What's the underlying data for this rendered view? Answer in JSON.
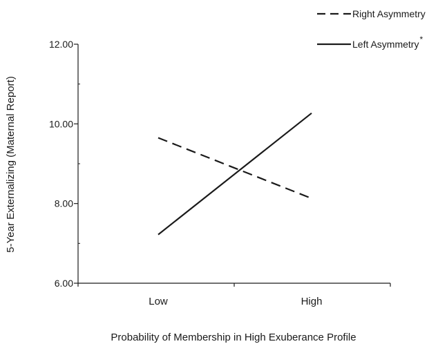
{
  "chart_data": {
    "type": "line",
    "categories": [
      "Low",
      "High"
    ],
    "series": [
      {
        "name": "Right Asymmetry",
        "values": [
          9.65,
          8.13
        ],
        "style": "dashed",
        "marker": ""
      },
      {
        "name": "Left Asymmetry",
        "values": [
          7.22,
          10.27
        ],
        "style": "solid",
        "marker": "*"
      }
    ],
    "xlabel": "Probability of Membership in High Exuberance Profile",
    "ylabel": "5-Year Externalizing (Maternal Report)",
    "ylim": [
      6,
      12
    ],
    "yticks": [
      "6.00",
      "8.00",
      "10.00",
      "12.00"
    ],
    "yminor": [
      7,
      9,
      11
    ],
    "grid": false,
    "legend_position": "top-right",
    "colors": {
      "line": "#1a1a1a",
      "axis": "#1a1a1a"
    }
  }
}
